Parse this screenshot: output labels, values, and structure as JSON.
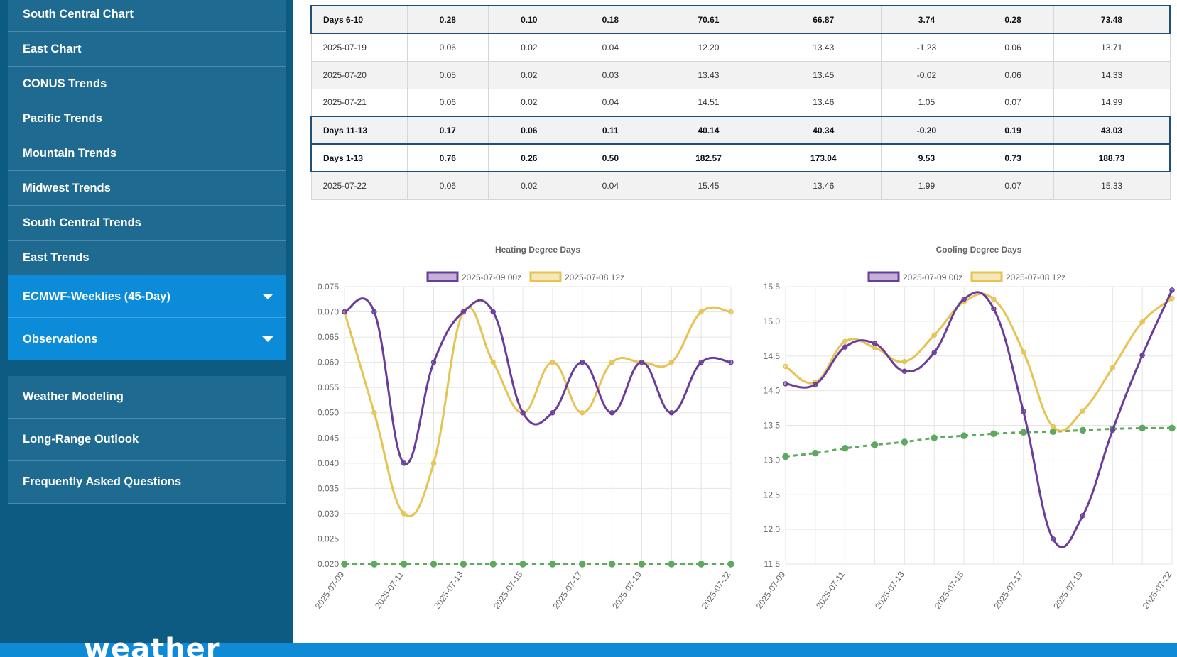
{
  "sidebar": {
    "items": [
      "South Central Chart",
      "East Chart",
      "CONUS Trends",
      "Pacific Trends",
      "Mountain Trends",
      "Midwest Trends",
      "South Central Trends",
      "East Trends",
      "ECMWF-Weeklies (45-Day)",
      "Observations"
    ],
    "secondary": [
      "Weather Modeling",
      "Long-Range Outlook",
      "Frequently Asked Questions"
    ]
  },
  "table": {
    "rows": [
      {
        "label": "Days 6-10",
        "summary": true,
        "alt": true,
        "values": [
          "0.28",
          "0.10",
          "0.18",
          "70.61",
          "66.87",
          "3.74",
          "0.28",
          "73.48"
        ]
      },
      {
        "label": "2025-07-19",
        "summary": false,
        "alt": false,
        "values": [
          "0.06",
          "0.02",
          "0.04",
          "12.20",
          "13.43",
          "-1.23",
          "0.06",
          "13.71"
        ]
      },
      {
        "label": "2025-07-20",
        "summary": false,
        "alt": true,
        "values": [
          "0.05",
          "0.02",
          "0.03",
          "13.43",
          "13.45",
          "-0.02",
          "0.06",
          "14.33"
        ]
      },
      {
        "label": "2025-07-21",
        "summary": false,
        "alt": false,
        "values": [
          "0.06",
          "0.02",
          "0.04",
          "14.51",
          "13.46",
          "1.05",
          "0.07",
          "14.99"
        ]
      },
      {
        "label": "Days 11-13",
        "summary": true,
        "alt": true,
        "values": [
          "0.17",
          "0.06",
          "0.11",
          "40.14",
          "40.34",
          "-0.20",
          "0.19",
          "43.03"
        ]
      },
      {
        "label": "Days 1-13",
        "summary": true,
        "alt": false,
        "values": [
          "0.76",
          "0.26",
          "0.50",
          "182.57",
          "173.04",
          "9.53",
          "0.73",
          "188.73"
        ]
      },
      {
        "label": "2025-07-22",
        "summary": false,
        "alt": true,
        "values": [
          "0.06",
          "0.02",
          "0.04",
          "15.45",
          "13.46",
          "1.99",
          "0.07",
          "15.33"
        ]
      }
    ]
  },
  "chart_data": [
    {
      "type": "line",
      "title": "Heating Degree Days",
      "x": [
        "2025-07-09",
        "2025-07-10",
        "2025-07-11",
        "2025-07-12",
        "2025-07-13",
        "2025-07-14",
        "2025-07-15",
        "2025-07-16",
        "2025-07-17",
        "2025-07-18",
        "2025-07-19",
        "2025-07-20",
        "2025-07-21",
        "2025-07-22"
      ],
      "x_tick_labels": [
        "2025-07-09",
        "2025-07-11",
        "2025-07-13",
        "2025-07-15",
        "2025-07-17",
        "2025-07-19",
        "2025-07-22"
      ],
      "ylim": [
        0.02,
        0.075
      ],
      "y_ticks": [
        "0.075",
        "0.070",
        "0.065",
        "0.060",
        "0.055",
        "0.050",
        "0.045",
        "0.040",
        "0.035",
        "0.030",
        "0.025",
        "0.020"
      ],
      "legend": "top",
      "grid": true,
      "series": [
        {
          "name": "2025-07-09 00z",
          "color": "#6a3d9a",
          "values": [
            0.07,
            0.07,
            0.04,
            0.06,
            0.07,
            0.07,
            0.05,
            0.05,
            0.06,
            0.05,
            0.06,
            0.05,
            0.06,
            0.06
          ]
        },
        {
          "name": "2025-07-08 12z",
          "color": "#e6c352",
          "values": [
            0.07,
            0.05,
            0.03,
            0.04,
            0.07,
            0.06,
            0.05,
            0.06,
            0.05,
            0.06,
            0.06,
            0.06,
            0.07,
            0.07
          ]
        },
        {
          "name": "",
          "color": "#5fa85f",
          "dashed": true,
          "values": [
            0.02,
            0.02,
            0.02,
            0.02,
            0.02,
            0.02,
            0.02,
            0.02,
            0.02,
            0.02,
            0.02,
            0.02,
            0.02,
            0.02
          ]
        }
      ]
    },
    {
      "type": "line",
      "title": "Cooling Degree Days",
      "x": [
        "2025-07-09",
        "2025-07-10",
        "2025-07-11",
        "2025-07-12",
        "2025-07-13",
        "2025-07-14",
        "2025-07-15",
        "2025-07-16",
        "2025-07-17",
        "2025-07-18",
        "2025-07-19",
        "2025-07-20",
        "2025-07-21",
        "2025-07-22"
      ],
      "x_tick_labels": [
        "2025-07-09",
        "2025-07-11",
        "2025-07-13",
        "2025-07-15",
        "2025-07-17",
        "2025-07-19",
        "2025-07-22"
      ],
      "ylim": [
        11.5,
        15.5
      ],
      "y_ticks": [
        "15.5",
        "15.0",
        "14.5",
        "14.0",
        "13.5",
        "13.0",
        "12.5",
        "12.0",
        "11.5"
      ],
      "legend": "top",
      "grid": true,
      "series": [
        {
          "name": "2025-07-09 00z",
          "color": "#6a3d9a",
          "values": [
            14.1,
            14.09,
            14.63,
            14.68,
            14.28,
            14.55,
            15.32,
            15.18,
            13.7,
            11.86,
            12.2,
            13.43,
            14.51,
            15.45
          ]
        },
        {
          "name": "2025-07-08 12z",
          "color": "#e6c352",
          "values": [
            14.35,
            14.12,
            14.71,
            14.62,
            14.42,
            14.8,
            15.28,
            15.32,
            14.56,
            13.48,
            13.71,
            14.33,
            14.99,
            15.33
          ]
        },
        {
          "name": "",
          "color": "#5fa85f",
          "dashed": true,
          "values": [
            13.05,
            13.1,
            13.17,
            13.22,
            13.26,
            13.32,
            13.35,
            13.38,
            13.4,
            13.41,
            13.43,
            13.45,
            13.46,
            13.46
          ]
        }
      ]
    }
  ],
  "footer": {
    "logo": "weather"
  }
}
